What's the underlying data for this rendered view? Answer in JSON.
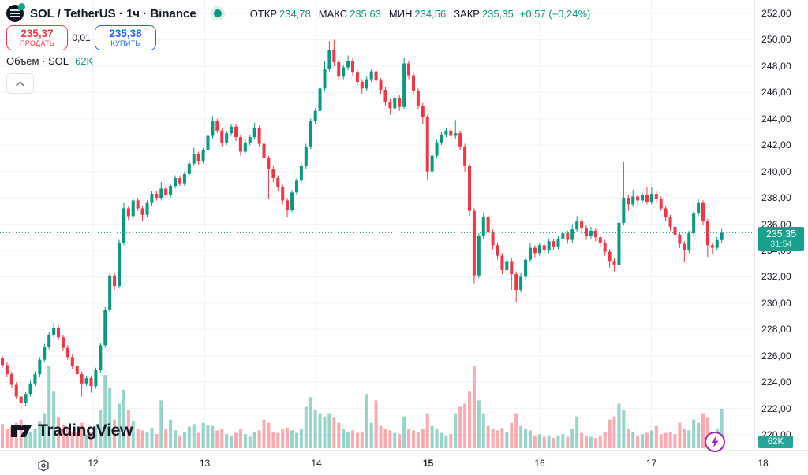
{
  "header": {
    "symbol_title": "SOL / TetherUS · 1ч · Binance",
    "ohlc": {
      "open_label": "ОТКР",
      "open": "234,78",
      "high_label": "МАКС",
      "high": "235,63",
      "low_label": "МИН",
      "low": "234,56",
      "close_label": "ЗАКР",
      "close": "235,35",
      "change": "+0,57 (+0,24%)"
    }
  },
  "trade_panel": {
    "sell_price": "235,37",
    "sell_label": "ПРОДАТЬ",
    "spread": "0,01",
    "buy_price": "235,38",
    "buy_label": "КУПИТЬ"
  },
  "volume_row": {
    "label": "Объём · SOL",
    "value": "62K"
  },
  "price_label": {
    "value": "235,35",
    "countdown": "31:54"
  },
  "volume_badge": "62K",
  "logo_text": "TradingView",
  "colors": {
    "up": "#089981",
    "down": "#f23645",
    "sell": "#f23645",
    "buy": "#2962ff",
    "badge": "#17a08b",
    "volume_badge": "#26a69a",
    "grid": "#f0f3fa",
    "text": "#131722",
    "lightning": "#9c27b0",
    "teal_text": "#089981"
  },
  "chart_data": {
    "type": "candlestick",
    "title": "SOL / TetherUS · 1ч · Binance",
    "price_axis": {
      "min": 220,
      "max": 252,
      "step": 2,
      "tick_format": "0,00"
    },
    "time_axis": {
      "labels": [
        "12",
        "13",
        "14",
        "15",
        "16",
        "17",
        "18"
      ],
      "bold_label": "15"
    },
    "last_price": 235.35,
    "legend_position": "top-left",
    "grid": true,
    "candles": [
      [
        225.8,
        226.0,
        225.1,
        225.3,
        38
      ],
      [
        225.3,
        225.5,
        224.4,
        224.6,
        30
      ],
      [
        224.6,
        224.8,
        223.6,
        223.8,
        34
      ],
      [
        223.8,
        224.0,
        222.7,
        222.9,
        40
      ],
      [
        222.9,
        223.1,
        221.9,
        222.4,
        45
      ],
      [
        222.4,
        223.3,
        222.2,
        223.1,
        28
      ],
      [
        223.1,
        224.1,
        222.9,
        223.9,
        25
      ],
      [
        223.9,
        224.8,
        223.7,
        224.6,
        30
      ],
      [
        224.6,
        225.9,
        224.4,
        225.7,
        42
      ],
      [
        225.7,
        226.9,
        225.5,
        226.7,
        55
      ],
      [
        226.7,
        227.8,
        226.5,
        227.6,
        130
      ],
      [
        227.6,
        228.5,
        227.4,
        228.1,
        90
      ],
      [
        228.1,
        228.3,
        227.2,
        227.4,
        48
      ],
      [
        227.4,
        227.6,
        226.4,
        226.6,
        36
      ],
      [
        226.6,
        226.8,
        225.7,
        225.9,
        30
      ],
      [
        225.9,
        226.1,
        225.0,
        225.2,
        26
      ],
      [
        225.2,
        225.4,
        224.4,
        224.6,
        24
      ],
      [
        224.6,
        224.8,
        222.9,
        223.9,
        40
      ],
      [
        223.9,
        224.5,
        223.7,
        224.3,
        22
      ],
      [
        224.3,
        224.5,
        223.2,
        223.7,
        26
      ],
      [
        223.7,
        225.1,
        223.5,
        224.9,
        35
      ],
      [
        224.9,
        227.0,
        224.7,
        226.8,
        60
      ],
      [
        226.8,
        229.7,
        226.6,
        229.5,
        115
      ],
      [
        229.5,
        232.3,
        229.3,
        232.1,
        95
      ],
      [
        232.1,
        232.3,
        231.0,
        231.3,
        45
      ],
      [
        231.3,
        234.8,
        231.1,
        234.6,
        70
      ],
      [
        234.6,
        237.6,
        234.4,
        237.2,
        92
      ],
      [
        237.2,
        237.4,
        236.3,
        236.6,
        60
      ],
      [
        236.6,
        238.0,
        236.4,
        237.8,
        42
      ],
      [
        237.8,
        238.0,
        237.0,
        237.2,
        30
      ],
      [
        237.2,
        237.4,
        236.2,
        236.7,
        28
      ],
      [
        236.7,
        237.8,
        236.5,
        237.6,
        26
      ],
      [
        237.6,
        238.5,
        237.4,
        238.3,
        32
      ],
      [
        238.3,
        238.5,
        237.8,
        238.0,
        22
      ],
      [
        238.0,
        239.2,
        237.8,
        238.7,
        75
      ],
      [
        238.7,
        238.9,
        238.0,
        238.2,
        30
      ],
      [
        238.2,
        239.1,
        238.0,
        238.9,
        45
      ],
      [
        238.9,
        239.7,
        238.7,
        239.5,
        28
      ],
      [
        239.5,
        239.7,
        238.9,
        239.1,
        20
      ],
      [
        239.1,
        240.0,
        238.9,
        239.8,
        26
      ],
      [
        239.8,
        240.8,
        239.6,
        240.6,
        34
      ],
      [
        240.6,
        241.8,
        240.4,
        241.3,
        38
      ],
      [
        241.3,
        241.5,
        240.5,
        240.8,
        24
      ],
      [
        240.8,
        241.8,
        240.6,
        241.6,
        40
      ],
      [
        241.6,
        242.9,
        241.4,
        242.7,
        36
      ],
      [
        242.7,
        244.2,
        242.5,
        243.8,
        35
      ],
      [
        243.8,
        244.0,
        242.9,
        243.1,
        28
      ],
      [
        243.1,
        243.3,
        241.9,
        242.2,
        30
      ],
      [
        242.2,
        243.1,
        242.0,
        242.9,
        22
      ],
      [
        242.9,
        243.6,
        242.7,
        243.4,
        20
      ],
      [
        243.4,
        243.6,
        242.3,
        242.6,
        24
      ],
      [
        242.6,
        242.8,
        241.2,
        241.5,
        30
      ],
      [
        241.5,
        242.4,
        241.3,
        242.2,
        22
      ],
      [
        242.2,
        242.8,
        242.0,
        242.6,
        18
      ],
      [
        242.6,
        243.7,
        242.4,
        243.3,
        26
      ],
      [
        243.3,
        243.5,
        241.9,
        242.1,
        28
      ],
      [
        242.1,
        242.3,
        240.7,
        241.0,
        45
      ],
      [
        241.0,
        241.2,
        237.9,
        240.2,
        40
      ],
      [
        240.2,
        240.4,
        239.2,
        239.5,
        26
      ],
      [
        239.5,
        239.7,
        238.5,
        238.8,
        24
      ],
      [
        238.8,
        239.0,
        237.5,
        237.8,
        30
      ],
      [
        237.8,
        238.0,
        236.5,
        237.1,
        32
      ],
      [
        237.1,
        238.6,
        236.9,
        238.4,
        28
      ],
      [
        238.4,
        239.5,
        238.2,
        239.3,
        24
      ],
      [
        239.3,
        240.6,
        239.1,
        240.4,
        30
      ],
      [
        240.4,
        242.1,
        240.2,
        241.9,
        65
      ],
      [
        241.9,
        244.0,
        241.7,
        243.8,
        80
      ],
      [
        243.8,
        244.8,
        243.6,
        244.6,
        60
      ],
      [
        244.6,
        246.5,
        244.4,
        246.3,
        55
      ],
      [
        246.3,
        248.4,
        246.1,
        247.8,
        50
      ],
      [
        247.8,
        249.9,
        247.6,
        249.2,
        55
      ],
      [
        249.2,
        250.0,
        248.0,
        248.3,
        48
      ],
      [
        248.3,
        248.5,
        246.9,
        247.2,
        40
      ],
      [
        247.2,
        248.1,
        247.0,
        247.9,
        30
      ],
      [
        247.9,
        248.8,
        247.7,
        248.4,
        26
      ],
      [
        248.4,
        248.6,
        247.2,
        247.5,
        28
      ],
      [
        247.5,
        247.7,
        246.5,
        246.8,
        24
      ],
      [
        246.8,
        247.0,
        245.9,
        246.3,
        26
      ],
      [
        246.3,
        247.2,
        246.1,
        247.0,
        85
      ],
      [
        247.0,
        247.8,
        246.8,
        247.6,
        40
      ],
      [
        247.6,
        247.8,
        246.6,
        246.9,
        75
      ],
      [
        246.9,
        247.1,
        245.9,
        246.2,
        35
      ],
      [
        246.2,
        246.4,
        245.0,
        245.3,
        30
      ],
      [
        245.3,
        245.5,
        244.3,
        244.8,
        28
      ],
      [
        244.8,
        245.8,
        244.6,
        245.6,
        24
      ],
      [
        245.6,
        245.8,
        244.6,
        244.9,
        22
      ],
      [
        244.9,
        248.6,
        244.7,
        248.2,
        50
      ],
      [
        248.2,
        248.4,
        247.0,
        247.3,
        30
      ],
      [
        247.3,
        247.5,
        245.8,
        246.1,
        28
      ],
      [
        246.1,
        246.3,
        244.7,
        245.0,
        26
      ],
      [
        245.0,
        245.2,
        243.6,
        244.1,
        30
      ],
      [
        244.1,
        244.3,
        239.4,
        240.0,
        55
      ],
      [
        240.0,
        241.4,
        239.8,
        241.2,
        35
      ],
      [
        241.2,
        242.4,
        241.0,
        242.2,
        30
      ],
      [
        242.2,
        243.0,
        242.0,
        242.8,
        24
      ],
      [
        242.8,
        243.3,
        242.6,
        243.1,
        20
      ],
      [
        243.1,
        243.3,
        242.4,
        242.7,
        22
      ],
      [
        242.7,
        243.9,
        242.5,
        242.9,
        55
      ],
      [
        242.9,
        243.1,
        241.6,
        241.9,
        65
      ],
      [
        241.9,
        242.1,
        240.0,
        240.4,
        70
      ],
      [
        240.4,
        240.6,
        236.6,
        237.0,
        90
      ],
      [
        237.0,
        237.2,
        231.5,
        232.1,
        130
      ],
      [
        232.1,
        235.3,
        231.9,
        235.1,
        75
      ],
      [
        235.1,
        236.9,
        234.9,
        236.5,
        55
      ],
      [
        236.5,
        236.7,
        235.1,
        235.4,
        35
      ],
      [
        235.4,
        235.6,
        234.1,
        234.4,
        30
      ],
      [
        234.4,
        234.6,
        233.3,
        233.6,
        28
      ],
      [
        233.6,
        233.8,
        232.2,
        232.5,
        32
      ],
      [
        232.5,
        233.5,
        232.3,
        233.2,
        26
      ],
      [
        233.2,
        233.4,
        231.0,
        232.2,
        40
      ],
      [
        232.2,
        232.4,
        230.1,
        231.0,
        55
      ],
      [
        231.0,
        232.3,
        230.8,
        232.0,
        35
      ],
      [
        232.0,
        233.5,
        231.8,
        233.3,
        30
      ],
      [
        233.3,
        234.6,
        233.1,
        234.2,
        28
      ],
      [
        234.2,
        234.4,
        233.5,
        233.8,
        20
      ],
      [
        233.8,
        234.6,
        233.6,
        234.4,
        22
      ],
      [
        234.4,
        234.6,
        233.7,
        234.0,
        18
      ],
      [
        234.0,
        234.9,
        233.8,
        234.7,
        20
      ],
      [
        234.7,
        234.9,
        234.0,
        234.3,
        16
      ],
      [
        234.3,
        235.1,
        234.1,
        234.9,
        20
      ],
      [
        234.9,
        235.5,
        234.7,
        235.3,
        22
      ],
      [
        235.3,
        235.5,
        234.5,
        234.8,
        18
      ],
      [
        234.8,
        236.0,
        234.6,
        235.6,
        30
      ],
      [
        235.6,
        236.6,
        235.4,
        236.2,
        50
      ],
      [
        236.2,
        236.4,
        235.4,
        235.7,
        24
      ],
      [
        235.7,
        235.9,
        234.8,
        235.1,
        20
      ],
      [
        235.1,
        235.8,
        234.9,
        235.5,
        18
      ],
      [
        235.5,
        235.7,
        234.7,
        235.0,
        16
      ],
      [
        235.0,
        235.2,
        234.3,
        234.6,
        20
      ],
      [
        234.6,
        234.8,
        233.6,
        233.9,
        26
      ],
      [
        233.9,
        234.1,
        232.7,
        233.2,
        45
      ],
      [
        233.2,
        233.4,
        232.4,
        232.9,
        50
      ],
      [
        232.9,
        236.3,
        232.7,
        236.1,
        70
      ],
      [
        236.1,
        240.7,
        235.9,
        238.0,
        60
      ],
      [
        238.0,
        238.2,
        237.0,
        237.5,
        30
      ],
      [
        237.5,
        238.6,
        237.3,
        238.1,
        26
      ],
      [
        238.1,
        238.3,
        237.4,
        237.8,
        20
      ],
      [
        237.8,
        238.4,
        237.6,
        238.2,
        22
      ],
      [
        238.2,
        238.8,
        237.5,
        237.7,
        24
      ],
      [
        237.7,
        238.8,
        237.5,
        238.3,
        28
      ],
      [
        238.3,
        238.5,
        237.6,
        237.9,
        35
      ],
      [
        237.9,
        238.1,
        237.0,
        237.2,
        22
      ],
      [
        237.2,
        237.4,
        236.2,
        236.5,
        24
      ],
      [
        236.5,
        236.7,
        235.5,
        235.8,
        26
      ],
      [
        235.8,
        236.0,
        234.9,
        235.2,
        22
      ],
      [
        235.2,
        235.4,
        234.2,
        234.5,
        40
      ],
      [
        234.5,
        234.7,
        233.1,
        234.0,
        30
      ],
      [
        234.0,
        235.5,
        233.8,
        235.3,
        28
      ],
      [
        235.3,
        237.0,
        235.1,
        236.8,
        45
      ],
      [
        236.8,
        237.9,
        236.6,
        237.6,
        40
      ],
      [
        237.6,
        237.8,
        235.9,
        236.2,
        55
      ],
      [
        236.2,
        236.4,
        233.5,
        234.4,
        48
      ],
      [
        234.4,
        234.6,
        233.7,
        234.2,
        26
      ],
      [
        234.2,
        235.0,
        234.0,
        234.78,
        30
      ],
      [
        234.78,
        235.63,
        234.56,
        235.35,
        62
      ]
    ]
  }
}
